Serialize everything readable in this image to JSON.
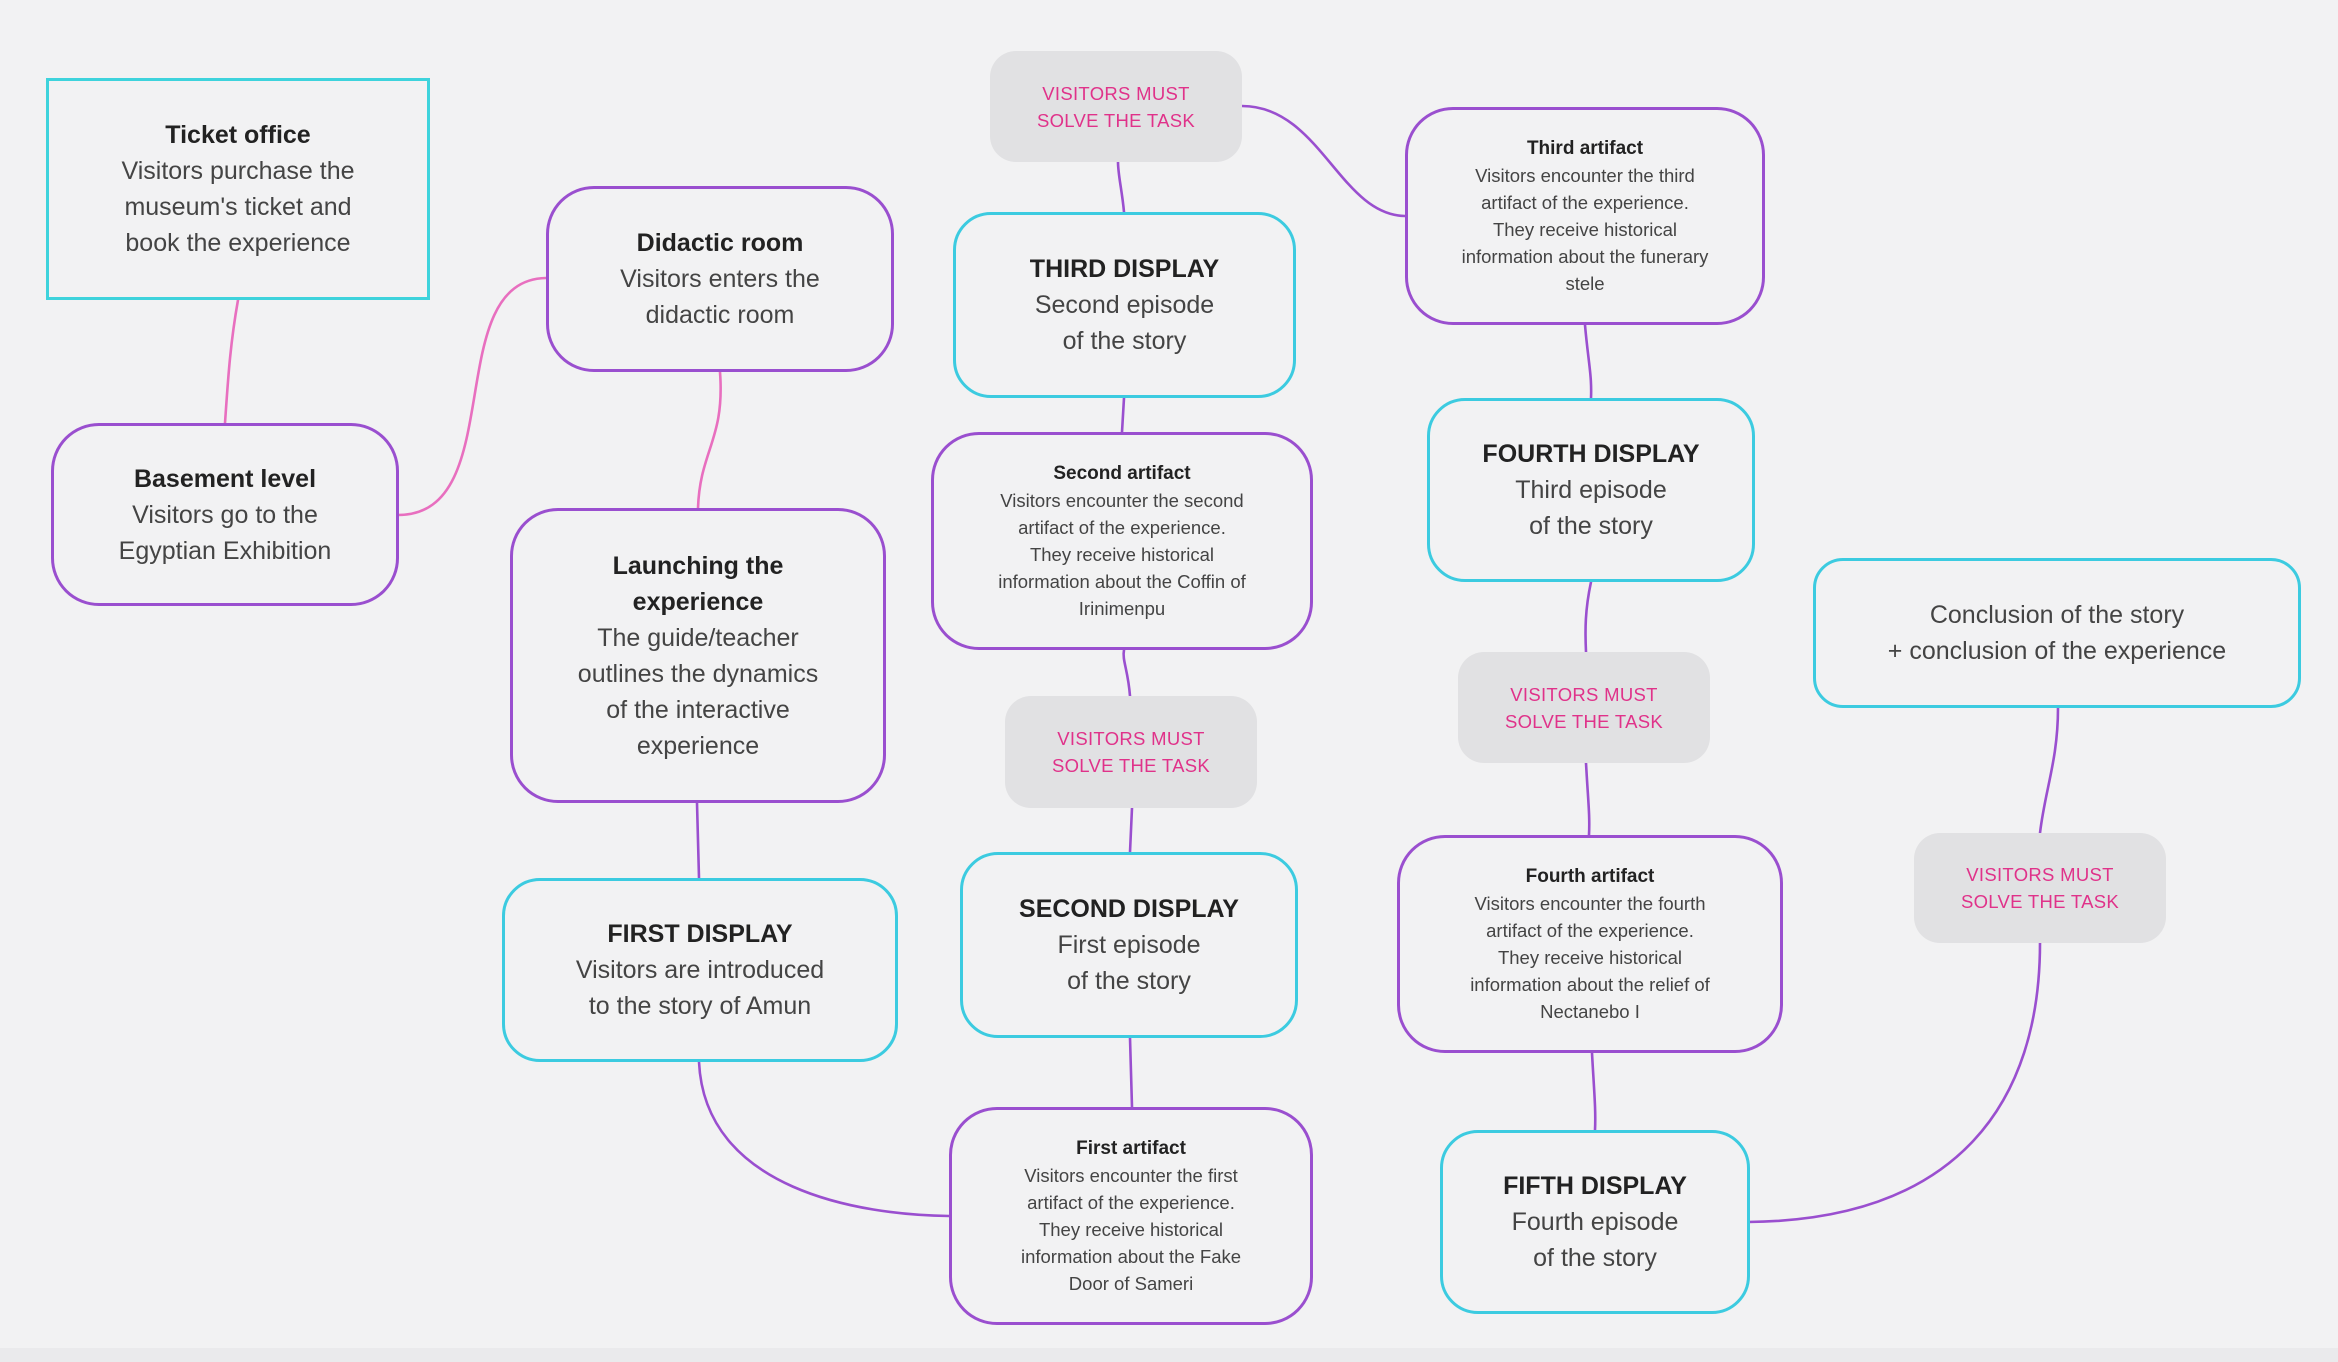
{
  "nodes": {
    "ticket_office": {
      "title": "Ticket office",
      "body_lines": [
        "Visitors purchase the",
        "museum's ticket and",
        "book the experience"
      ]
    },
    "basement_level": {
      "title": "Basement level",
      "body_lines": [
        "Visitors go to the",
        "Egyptian Exhibition"
      ]
    },
    "didactic_room": {
      "title": "Didactic room",
      "body_lines": [
        "Visitors enters the",
        "didactic room"
      ]
    },
    "launching": {
      "title_lines": [
        "Launching the",
        "experience"
      ],
      "body_lines": [
        "The guide/teacher",
        "outlines the dynamics",
        "of the interactive",
        "experience"
      ]
    },
    "first_display": {
      "title": "FIRST DISPLAY",
      "body_lines": [
        "Visitors are introduced",
        "to the story of Amun"
      ]
    },
    "first_artifact": {
      "title": "First artifact",
      "body_lines": [
        "Visitors encounter the first",
        "artifact of the experience.",
        "They receive historical",
        "information about the Fake",
        "Door of Sameri"
      ]
    },
    "second_display": {
      "title": "SECOND DISPLAY",
      "body_lines": [
        "First episode",
        "of the story"
      ]
    },
    "second_artifact": {
      "title": "Second artifact",
      "body_lines": [
        "Visitors encounter the second",
        "artifact of the experience.",
        "They receive historical",
        "information about the Coffin of",
        "Irinimenpu"
      ]
    },
    "third_display": {
      "title": "THIRD DISPLAY",
      "body_lines": [
        "Second episode",
        "of the story"
      ]
    },
    "third_artifact": {
      "title": "Third artifact",
      "body_lines": [
        "Visitors encounter the third",
        "artifact of the experience.",
        "They receive historical",
        "information about the funerary",
        "stele"
      ]
    },
    "fourth_display": {
      "title": "FOURTH DISPLAY",
      "body_lines": [
        "Third episode",
        "of the story"
      ]
    },
    "fourth_artifact": {
      "title": "Fourth artifact",
      "body_lines": [
        "Visitors encounter the fourth",
        "artifact of the experience.",
        "They receive historical",
        "information about the relief of",
        "Nectanebo I"
      ]
    },
    "fifth_display": {
      "title": "FIFTH DISPLAY",
      "body_lines": [
        "Fourth episode",
        "of the story"
      ]
    },
    "conclusion": {
      "body_lines": [
        "Conclusion of the story",
        "+ conclusion of the experience"
      ]
    }
  },
  "task_label_lines": [
    "VISITORS MUST",
    "SOLVE THE TASK"
  ],
  "colors": {
    "purple": "#9a4fcf",
    "teal": "#3ccbe0",
    "pink_line": "#e86fbf",
    "task_text": "#e0328a",
    "task_bg": "#e1e1e3",
    "background": "#f2f2f3"
  }
}
